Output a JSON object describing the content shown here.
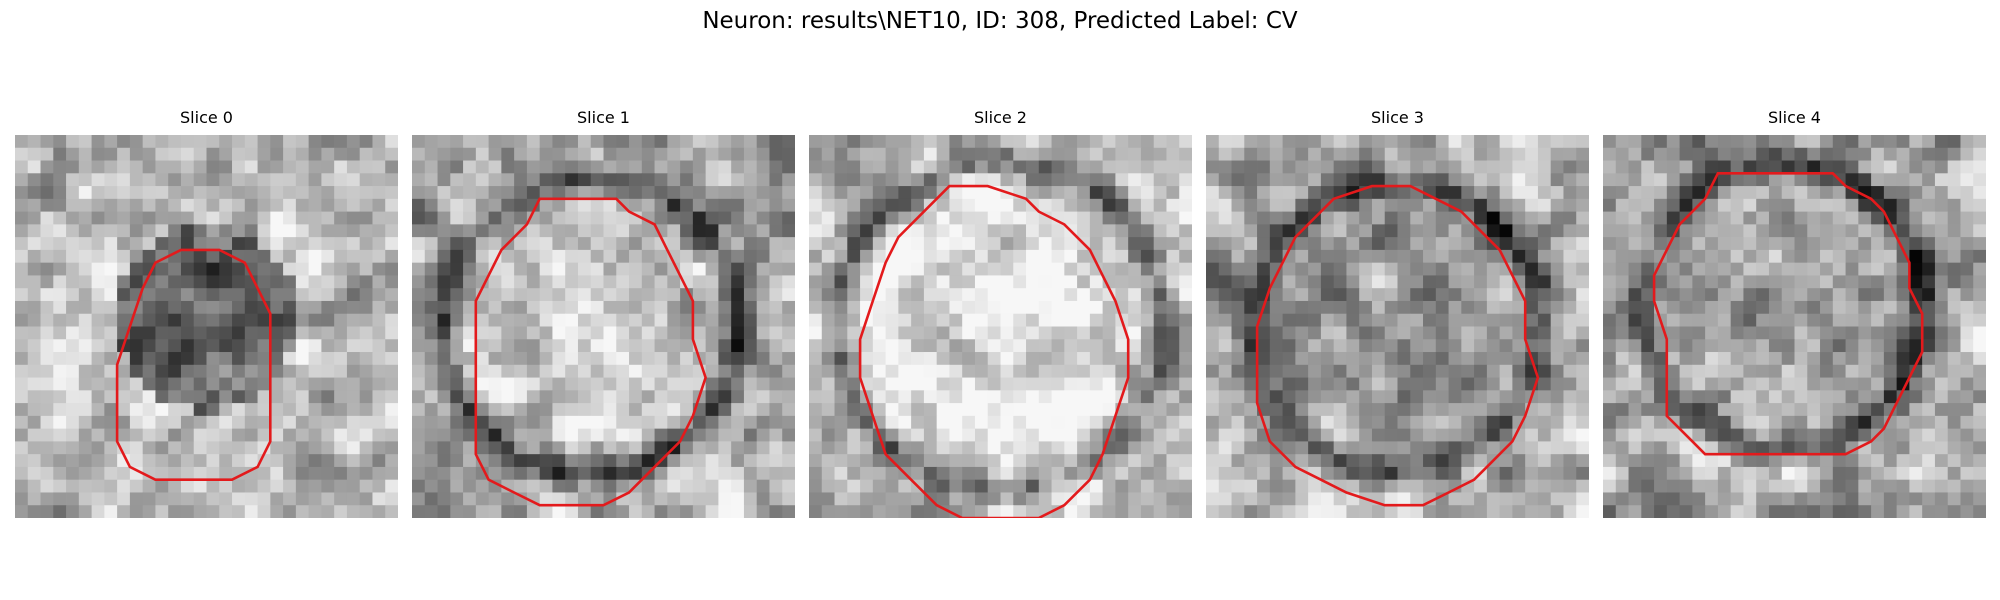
{
  "figure": {
    "title": "Neuron: results\\NET10, ID: 308, Predicted Label: CV",
    "contour_color": "#e31a1c",
    "colormap": "grayscale",
    "axes_visible": false
  },
  "slices": [
    {
      "title": "Slice 0"
    },
    {
      "title": "Slice 1"
    },
    {
      "title": "Slice 2"
    },
    {
      "title": "Slice 3"
    },
    {
      "title": "Slice 4"
    }
  ]
}
